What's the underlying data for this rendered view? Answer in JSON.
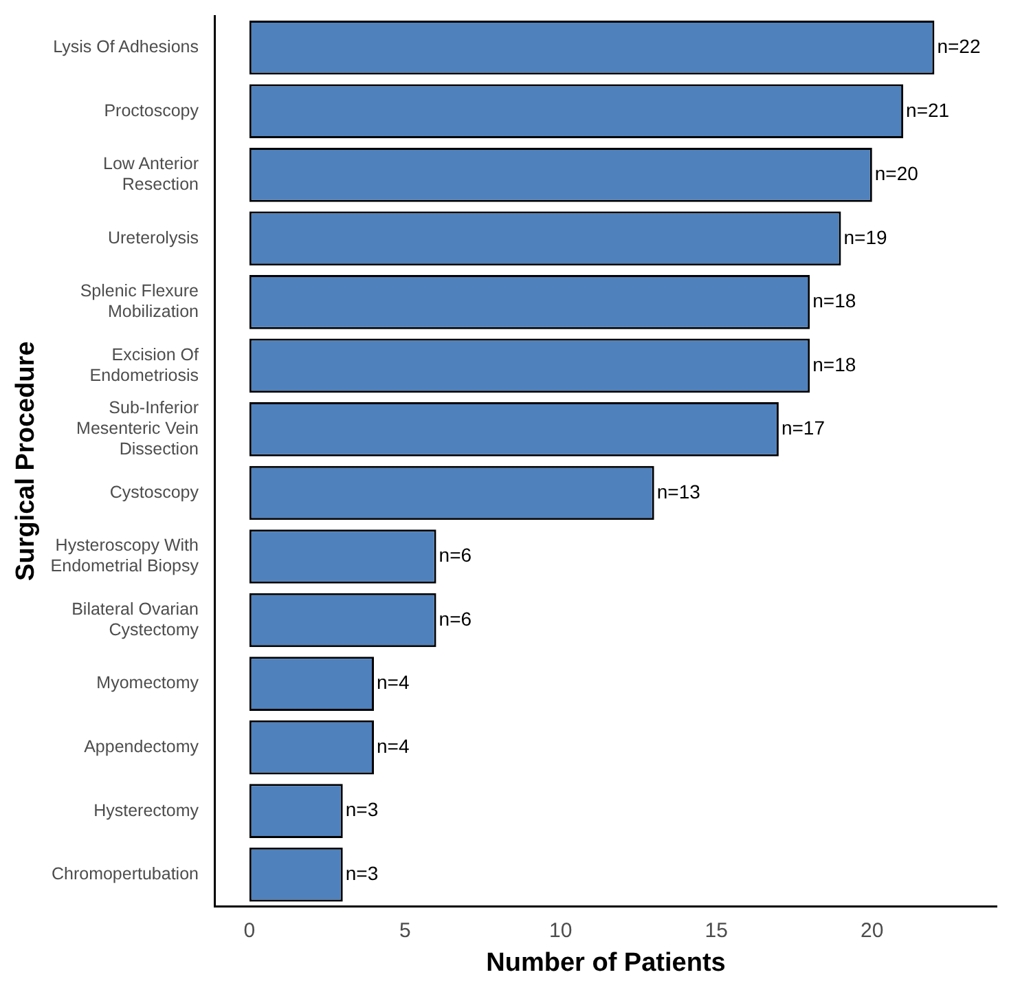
{
  "chart_data": {
    "type": "bar",
    "orientation": "horizontal",
    "xlabel": "Number of Patients",
    "ylabel": "Surgical Procedure",
    "categories": [
      "Lysis Of Adhesions",
      "Proctoscopy",
      "Low Anterior\nResection",
      "Ureterolysis",
      "Splenic Flexure\nMobilization",
      "Excision Of\nEndometriosis",
      "Sub-Inferior\nMesenteric Vein\nDissection",
      "Cystoscopy",
      "Hysteroscopy With\nEndometrial Biopsy",
      "Bilateral Ovarian\nCystectomy",
      "Myomectomy",
      "Appendectomy",
      "Hysterectomy",
      "Chromopertubation"
    ],
    "values": [
      22,
      21,
      20,
      19,
      18,
      18,
      17,
      13,
      6,
      6,
      4,
      4,
      3,
      3
    ],
    "value_labels": [
      "n=22",
      "n=21",
      "n=20",
      "n=19",
      "n=18",
      "n=18",
      "n=17",
      "n=13",
      "n=6",
      "n=6",
      "n=4",
      "n=4",
      "n=3",
      "n=3"
    ],
    "color": "#4f81bd",
    "xlim": [
      -1.1,
      24
    ],
    "xticks": [
      0,
      5,
      10,
      15,
      20
    ],
    "grid": false,
    "legend": false
  }
}
